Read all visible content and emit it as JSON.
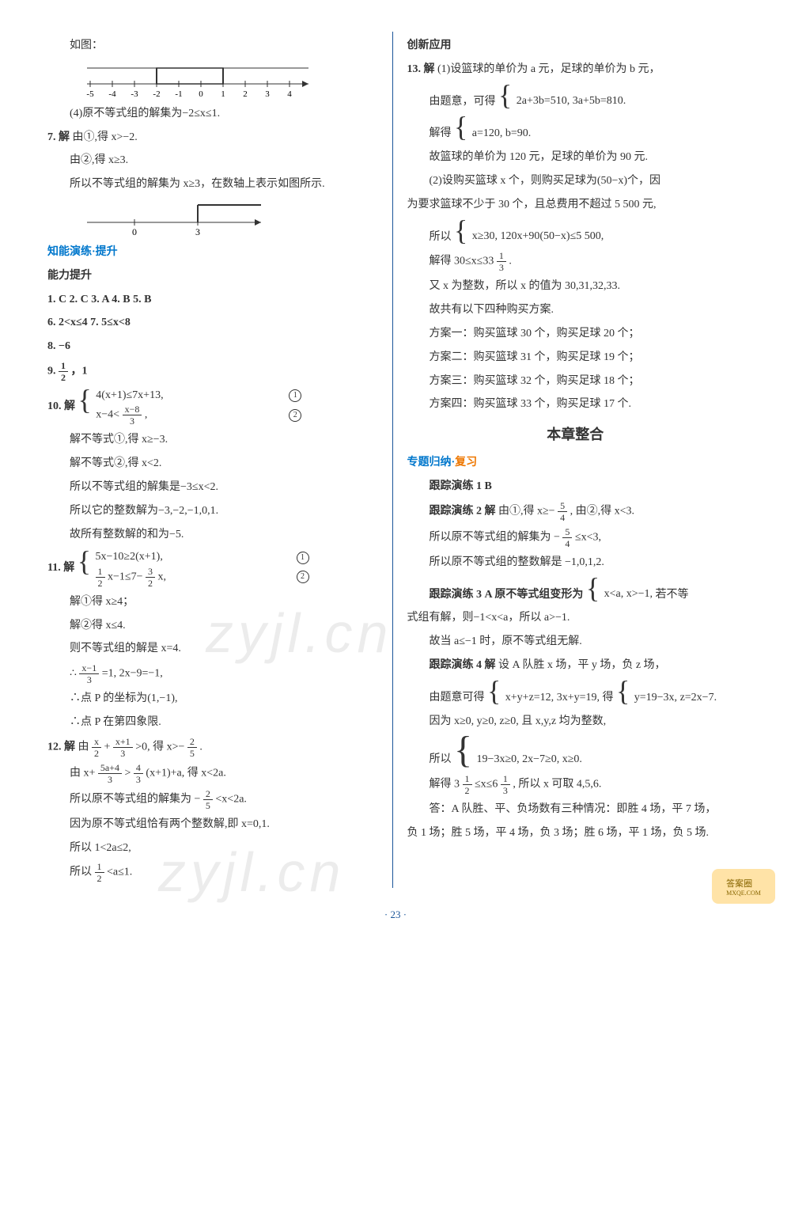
{
  "page_number": "· 23 ·",
  "watermark_text": "zyjl.cn",
  "badge_text": "答案圈",
  "badge_sub": "MXQE.COM",
  "numline1": {
    "ticks": [
      -5,
      -4,
      -3,
      -2,
      -1,
      0,
      1,
      2,
      3,
      4
    ],
    "bracket_from": -2,
    "bracket_to": 1,
    "tick_color": "#333333",
    "line_color": "#333333"
  },
  "numline2": {
    "ticks_labeled": [
      0,
      3
    ],
    "bracket_from": 3,
    "arrow_right": true,
    "tick_color": "#333333"
  },
  "left": {
    "p0": "如图：",
    "p1": "(4)原不等式组的解集为−2≤x≤1.",
    "q7": "7. 解",
    "q7a": "由①,得 x>−2.",
    "q7b": "由②,得 x≥3.",
    "q7c": "所以不等式组的解集为 x≥3，在数轴上表示如图所示.",
    "sec1a": "知能演练·",
    "sec1b": "提升",
    "sec2": "能力提升",
    "mc": "1. C   2. C   3. A   4. B   5. B",
    "q6": "6. 2<x≤4   7. 5≤x<8",
    "q8": "8. −6",
    "q9a": "9. ",
    "q9b": "，1",
    "q10": "10. 解",
    "q10eq1": "4(x+1)≤7x+13,",
    "q10eq2": "x−4< ",
    "q10eq2b": " ,",
    "q10s1": "解不等式①,得 x≥−3.",
    "q10s2": "解不等式②,得 x<2.",
    "q10s3": "所以不等式组的解集是−3≤x<2.",
    "q10s4": "所以它的整数解为−3,−2,−1,0,1.",
    "q10s5": "故所有整数解的和为−5.",
    "q11": "11. 解",
    "q11eq1": "5x−10≥2(x+1),",
    "q11eq2a": " x−1≤7− ",
    "q11eq2b": " x,",
    "q11s1": "解①得 x≥4；",
    "q11s2": "解②得 x≤4.",
    "q11s3": "则不等式组的解是 x=4.",
    "q11s4a": "∴ ",
    "q11s4b": " =1, 2x−9=−1,",
    "q11s5": "∴点 P 的坐标为(1,−1),",
    "q11s6": "∴点 P 在第四象限.",
    "q12": "12. 解",
    "q12a1": "由 ",
    "q12a2": " + ",
    "q12a3": " >0, 得 x>− ",
    "q12a4": " .",
    "q12b1": "由 x+ ",
    "q12b2": " > ",
    "q12b3": " (x+1)+a, 得 x<2a.",
    "q12c": "所以原不等式组的解集为 − ",
    "q12c2": " <x<2a.",
    "q12d": "因为原不等式组恰有两个整数解,即 x=0,1.",
    "q12e": "所以 1<2a≤2,",
    "q12f1": "所以 ",
    "q12f2": " <a≤1."
  },
  "right": {
    "sec3": "创新应用",
    "q13": "13. 解",
    "q13a": "(1)设篮球的单价为 a 元，足球的单价为 b 元，",
    "q13b": "由题意，可得",
    "q13eq1": "2a+3b=510,",
    "q13eq2": "3a+5b=810.",
    "q13c": "解得",
    "q13eq3": "a=120,",
    "q13eq4": "b=90.",
    "q13d": "故篮球的单价为 120 元，足球的单价为 90 元.",
    "q13e": "(2)设购买篮球 x 个，则购买足球为(50−x)个，因",
    "q13f": "为要求篮球不少于 30 个，且总费用不超过 5 500 元,",
    "q13g": "所以",
    "q13eq5": "x≥30,",
    "q13eq6": "120x+90(50−x)≤5 500,",
    "q13h1": "解得 30≤x≤33 ",
    "q13h2": " .",
    "q13i": "又 x 为整数，所以 x 的值为 30,31,32,33.",
    "q13j": "故共有以下四种购买方案.",
    "q13k1": "方案一：购买篮球 30 个，购买足球 20 个；",
    "q13k2": "方案二：购买篮球 31 个，购买足球 19 个；",
    "q13k3": "方案三：购买篮球 32 个，购买足球 18 个；",
    "q13k4": "方案四：购买篮球 33 个，购买足球 17 个.",
    "chap": "本章整合",
    "sec4a": "专题归纳·",
    "sec4b": "复习",
    "t1": "跟踪演练 1   B",
    "t2a": "跟踪演练 2   解",
    "t2b": "由①,得 x≥− ",
    "t2c": " , 由②,得 x<3.",
    "t2d": "所以原不等式组的解集为 − ",
    "t2e": " ≤x<3,",
    "t2f": "所以原不等式组的整数解是 −1,0,1,2.",
    "t3a": "跟踪演练 3   A   原不等式组变形为",
    "t3eq1": "x<a,",
    "t3eq2": "x>−1,",
    "t3b": "若不等",
    "t3c": "式组有解，则−1<x<a，所以 a>−1.",
    "t3d": "故当 a≤−1 时，原不等式组无解.",
    "t4a": "跟踪演练 4   解",
    "t4b": "设 A 队胜 x 场，平 y 场，负 z 场，",
    "t4c": "由题意可得",
    "t4eq1": "x+y+z=12,",
    "t4eq2": "3x+y=19,",
    "t4d": "得",
    "t4eq3": "y=19−3x,",
    "t4eq4": "z=2x−7.",
    "t4e": "因为 x≥0, y≥0, z≥0, 且 x,y,z 均为整数,",
    "t4f": "所以",
    "t4eq5": "19−3x≥0,",
    "t4eq6": "2x−7≥0,",
    "t4eq7": "x≥0.",
    "t4g1": "解得 3 ",
    "t4g2": " ≤x≤6 ",
    "t4g3": " , 所以 x 可取 4,5,6.",
    "t4h": "答：A 队胜、平、负场数有三种情况：即胜 4 场，平 7 场，",
    "t4i": "负 1 场；胜 5 场，平 4 场，负 3 场；胜 6 场，平 1 场，负 5 场."
  }
}
